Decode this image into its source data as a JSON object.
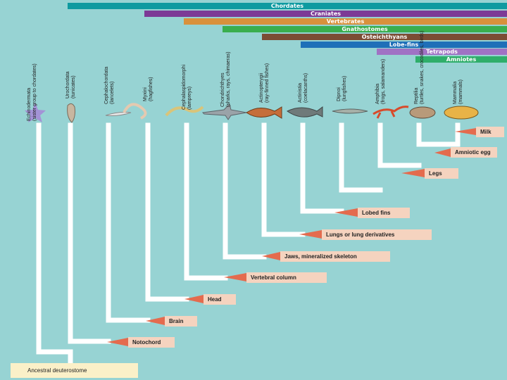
{
  "clades": [
    {
      "label": "Chordates",
      "color": "#0e9aa0"
    },
    {
      "label": "Craniates",
      "color": "#7c3a96"
    },
    {
      "label": "Vertebrates",
      "color": "#d8913c"
    },
    {
      "label": "Gnathostomes",
      "color": "#3aae4e"
    },
    {
      "label": "Osteichthyans",
      "color": "#7b4c34"
    },
    {
      "label": "Lobe-fins",
      "color": "#1f6fb8"
    },
    {
      "label": "Tetrapods",
      "color": "#a072c4"
    },
    {
      "label": "Amniotes",
      "color": "#2fae6a"
    }
  ],
  "taxa": [
    {
      "name": "Echinodermata",
      "sub": "(sister group to chordates)"
    },
    {
      "name": "Urochordata",
      "sub": "(tunicates)"
    },
    {
      "name": "Cephalochordata",
      "sub": "(lancelets)"
    },
    {
      "name": "Myxini",
      "sub": "(hagfishes)"
    },
    {
      "name": "Cephalaspidomorphi",
      "sub": "(lampreys)"
    },
    {
      "name": "Chondrichthyes",
      "sub": "(sharks, rays, chimaeras)"
    },
    {
      "name": "Actinopterygii",
      "sub": "(ray-finned fishes)"
    },
    {
      "name": "Actinistia",
      "sub": "(coelacanths)"
    },
    {
      "name": "Dipnoi",
      "sub": "(lungfishes)"
    },
    {
      "name": "Amphibia",
      "sub": "(frogs, salamanders)"
    },
    {
      "name": "Reptilia",
      "sub": "(turtles, snakes, crocodiles, birds)"
    },
    {
      "name": "Mammalia",
      "sub": "(mammals)"
    }
  ],
  "traits": [
    "Milk",
    "Amniotic egg",
    "Legs",
    "Lobed fins",
    "Lungs or lung derivatives",
    "Jaws, mineralized skeleton",
    "Vertebral column",
    "Head",
    "Brain",
    "Notochord"
  ],
  "root_label": "Ancestral deuterostome",
  "colors": {
    "background": "#97d3d3",
    "branch": "#ffffff",
    "trait_box": "#f5d3bf",
    "trait_arrow": "#e46b4e",
    "root_box": "#fbf0c8"
  }
}
